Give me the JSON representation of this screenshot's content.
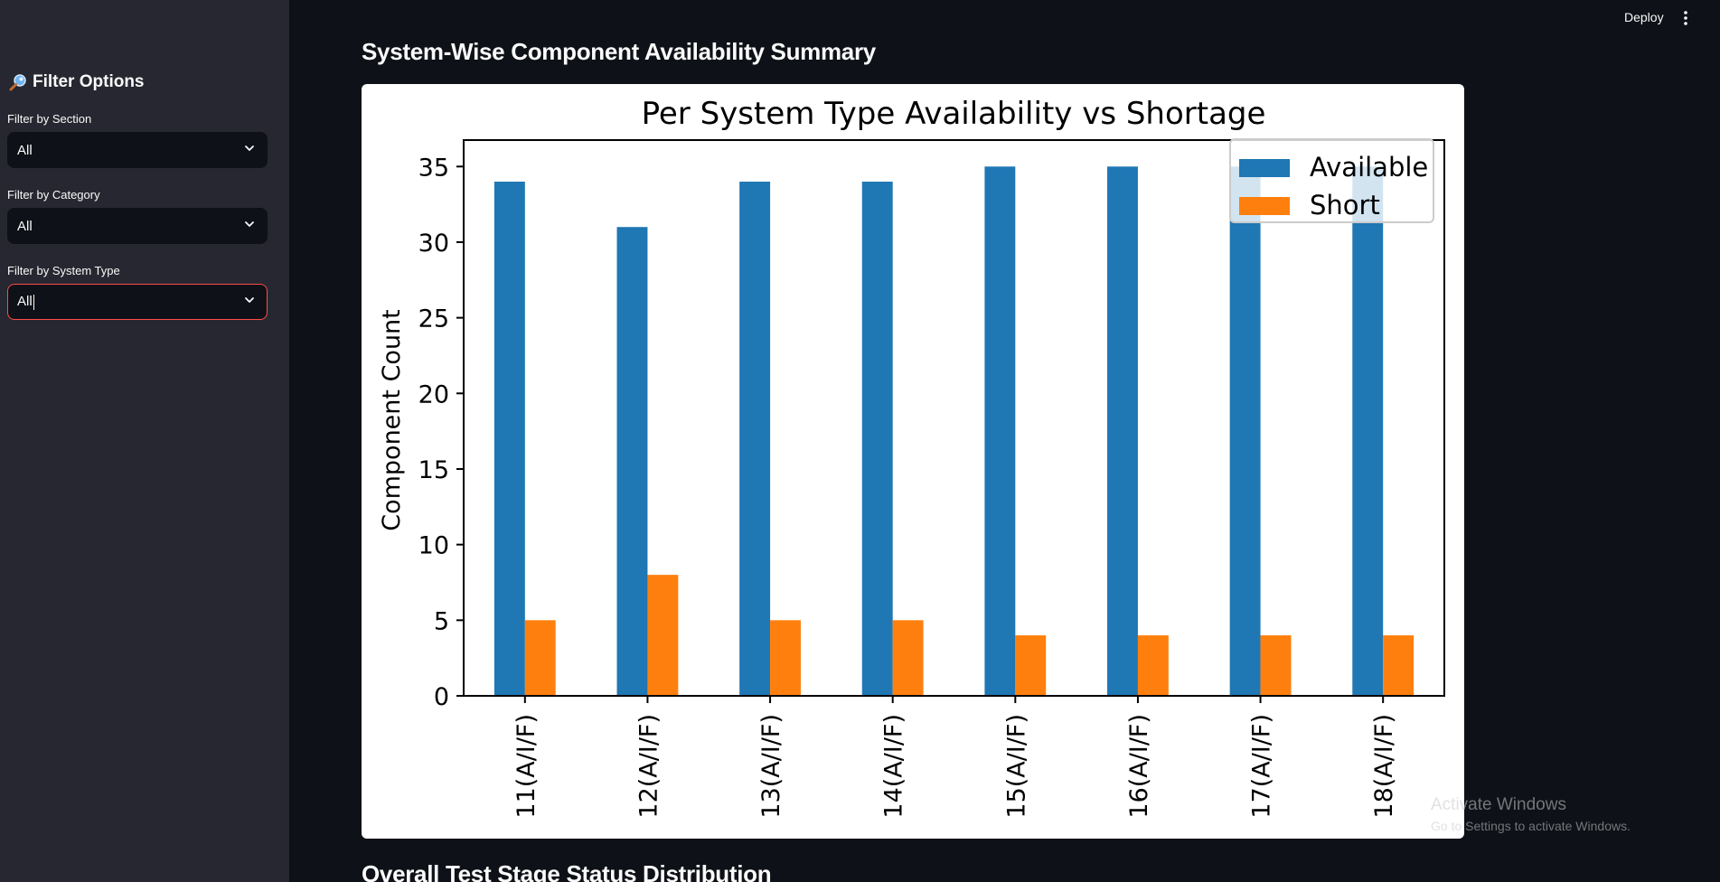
{
  "app": {
    "deploy_label": "Deploy",
    "menu_icon": "vertical-dots-icon"
  },
  "sidebar": {
    "title": "Filter Options",
    "title_icon": "magnifier-icon",
    "filters": [
      {
        "label": "Filter by Section",
        "value": "All"
      },
      {
        "label": "Filter by Category",
        "value": "All"
      },
      {
        "label": "Filter by System Type",
        "value": "All"
      }
    ]
  },
  "main": {
    "section_title": "System-Wise Component Availability Summary",
    "next_section_title": "Overall Test Stage Status Distribution"
  },
  "watermark": {
    "line1": "Activate Windows",
    "line2": "Go to Settings to activate Windows."
  },
  "colors": {
    "available": "#1f77b4",
    "short": "#ff7f0e",
    "focus_border": "#ff4b4b"
  },
  "chart_data": {
    "type": "bar",
    "title": "Per System Type Availability vs Shortage",
    "xlabel": "",
    "ylabel": "Component Count",
    "categories": [
      "11(A/I/F)",
      "12(A/I/F)",
      "13(A/I/F)",
      "14(A/I/F)",
      "15(A/I/F)",
      "16(A/I/F)",
      "17(A/I/F)",
      "18(A/I/F)"
    ],
    "series": [
      {
        "name": "Available",
        "values": [
          34,
          31,
          34,
          34,
          35,
          35,
          35,
          35
        ]
      },
      {
        "name": "Short",
        "values": [
          5,
          8,
          5,
          5,
          4,
          4,
          4,
          4
        ]
      }
    ],
    "ylim": [
      0,
      36.75
    ],
    "yticks": [
      0,
      5,
      10,
      15,
      20,
      25,
      30,
      35
    ],
    "legend_position": "top-right",
    "grid": false
  }
}
